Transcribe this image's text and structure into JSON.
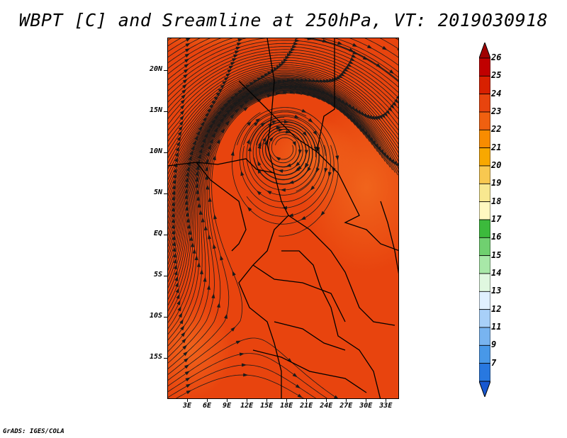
{
  "title": "WBPT [C] and Sreamline at 250hPa, VT: 2019030918",
  "footer": "GrADS: IGES/COLA",
  "map": {
    "lon_range": [
      0,
      35
    ],
    "lat_range": [
      -20,
      24
    ],
    "lat_labels": [
      "20N",
      "15N",
      "10N",
      "5N",
      "EQ",
      "5S",
      "10S",
      "15S"
    ],
    "lat_values": [
      20,
      15,
      10,
      5,
      0,
      -5,
      -10,
      -15
    ],
    "lon_labels": [
      "3E",
      "6E",
      "9E",
      "12E",
      "15E",
      "18E",
      "21E",
      "24E",
      "27E",
      "30E",
      "33E"
    ],
    "lon_values": [
      3,
      6,
      9,
      12,
      15,
      18,
      21,
      24,
      27,
      30,
      33
    ],
    "base_fill_color": "#e8440e",
    "vortex_center": [
      17.5,
      11
    ]
  },
  "colorbar": {
    "levels": [
      "26",
      "25",
      "24",
      "23",
      "22",
      "21",
      "20",
      "19",
      "18",
      "17",
      "16",
      "15",
      "14",
      "13",
      "12",
      "11",
      "9",
      "7"
    ],
    "colors": [
      "#a00000",
      "#c00000",
      "#d82000",
      "#e8440e",
      "#f06010",
      "#f88c00",
      "#f8a800",
      "#f8c850",
      "#f8e890",
      "#fff8c0",
      "#3cba3c",
      "#70d070",
      "#a8e8a8",
      "#e0f8e0",
      "#e0f0ff",
      "#a8d0f8",
      "#78b4f0",
      "#4898e8",
      "#2878e0",
      "#1858d0"
    ]
  }
}
